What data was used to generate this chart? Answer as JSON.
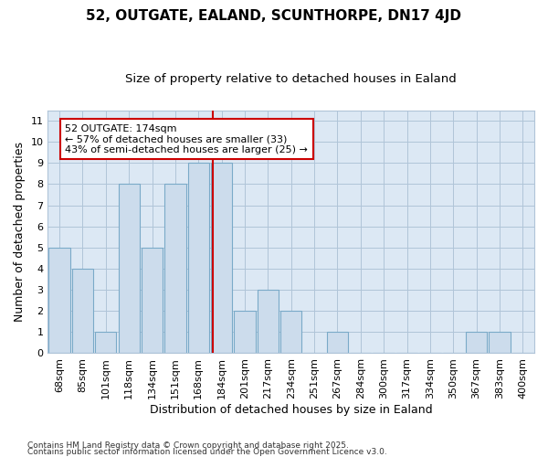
{
  "title": "52, OUTGATE, EALAND, SCUNTHORPE, DN17 4JD",
  "subtitle": "Size of property relative to detached houses in Ealand",
  "xlabel": "Distribution of detached houses by size in Ealand",
  "ylabel": "Number of detached properties",
  "categories": [
    "68sqm",
    "85sqm",
    "101sqm",
    "118sqm",
    "134sqm",
    "151sqm",
    "168sqm",
    "184sqm",
    "201sqm",
    "217sqm",
    "234sqm",
    "251sqm",
    "267sqm",
    "284sqm",
    "300sqm",
    "317sqm",
    "334sqm",
    "350sqm",
    "367sqm",
    "383sqm",
    "400sqm"
  ],
  "values": [
    5,
    4,
    1,
    8,
    5,
    8,
    9,
    9,
    2,
    3,
    2,
    0,
    1,
    0,
    0,
    0,
    0,
    0,
    1,
    1,
    0
  ],
  "bar_color": "#ccdcec",
  "bar_edge_color": "#7aaac8",
  "grid_color": "#b0c4d8",
  "plot_bg_color": "#dce8f4",
  "fig_bg_color": "#ffffff",
  "red_line_x": 6.62,
  "annotation_text": "52 OUTGATE: 174sqm\n← 57% of detached houses are smaller (33)\n43% of semi-detached houses are larger (25) →",
  "annotation_box_color": "#ffffff",
  "annotation_box_edge": "#cc0000",
  "red_line_color": "#cc0000",
  "ylim": [
    0,
    11.5
  ],
  "yticks": [
    0,
    1,
    2,
    3,
    4,
    5,
    6,
    7,
    8,
    9,
    10,
    11
  ],
  "footer1": "Contains HM Land Registry data © Crown copyright and database right 2025.",
  "footer2": "Contains public sector information licensed under the Open Government Licence v3.0.",
  "title_fontsize": 11,
  "subtitle_fontsize": 9.5,
  "axis_label_fontsize": 9,
  "tick_fontsize": 8,
  "annotation_fontsize": 8,
  "footer_fontsize": 6.5
}
